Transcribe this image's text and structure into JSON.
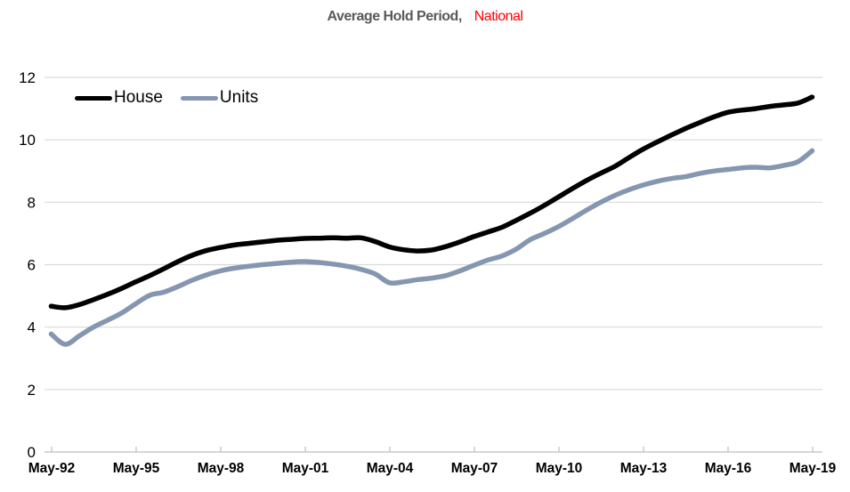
{
  "title": {
    "main": "Average Hold Period,",
    "highlight": "National"
  },
  "chart_data": {
    "type": "line",
    "title": "Average Hold Period, National",
    "xlabel": "",
    "ylabel": "",
    "ylim": [
      0,
      12
    ],
    "y_ticks": [
      0,
      2,
      4,
      6,
      8,
      10,
      12
    ],
    "grid": "horizontal",
    "legend_position": "top-left",
    "x_tick_labels": [
      "May-92",
      "May-95",
      "May-98",
      "May-01",
      "May-04",
      "May-07",
      "May-10",
      "May-13",
      "May-16",
      "May-19"
    ],
    "x_tick_years": [
      1992.417,
      1995.417,
      1998.417,
      2001.417,
      2004.417,
      2007.417,
      2010.417,
      2013.417,
      2016.417,
      2019.417
    ],
    "x_years": [
      1992.4,
      1992.9,
      1993.4,
      1993.9,
      1994.4,
      1994.9,
      1995.4,
      1995.9,
      1996.4,
      1996.9,
      1997.4,
      1997.9,
      1998.4,
      1998.9,
      1999.4,
      1999.9,
      2000.4,
      2000.9,
      2001.4,
      2001.9,
      2002.4,
      2002.9,
      2003.4,
      2003.9,
      2004.4,
      2004.9,
      2005.4,
      2005.9,
      2006.4,
      2006.9,
      2007.4,
      2007.9,
      2008.4,
      2008.9,
      2009.4,
      2009.9,
      2010.4,
      2010.9,
      2011.4,
      2011.9,
      2012.4,
      2012.9,
      2013.4,
      2013.9,
      2014.4,
      2014.9,
      2015.4,
      2015.9,
      2016.4,
      2016.9,
      2017.4,
      2017.9,
      2018.4,
      2018.9,
      2019.4
    ],
    "series": [
      {
        "name": "House",
        "color": "#000000",
        "values": [
          4.67,
          4.62,
          4.72,
          4.88,
          5.05,
          5.24,
          5.45,
          5.65,
          5.87,
          6.1,
          6.3,
          6.45,
          6.55,
          6.63,
          6.68,
          6.73,
          6.78,
          6.81,
          6.84,
          6.85,
          6.86,
          6.85,
          6.86,
          6.74,
          6.57,
          6.48,
          6.44,
          6.47,
          6.58,
          6.73,
          6.9,
          7.05,
          7.2,
          7.42,
          7.65,
          7.9,
          8.17,
          8.44,
          8.7,
          8.93,
          9.15,
          9.43,
          9.7,
          9.93,
          10.15,
          10.36,
          10.55,
          10.73,
          10.88,
          10.95,
          11.0,
          11.07,
          11.12,
          11.18,
          11.37
        ]
      },
      {
        "name": "Units",
        "color": "#8496B0",
        "values": [
          3.78,
          3.45,
          3.72,
          4.0,
          4.22,
          4.45,
          4.75,
          5.02,
          5.12,
          5.3,
          5.5,
          5.67,
          5.8,
          5.89,
          5.95,
          6.0,
          6.04,
          6.08,
          6.1,
          6.07,
          6.02,
          5.95,
          5.85,
          5.7,
          5.42,
          5.45,
          5.52,
          5.57,
          5.65,
          5.8,
          5.98,
          6.15,
          6.28,
          6.5,
          6.8,
          7.0,
          7.22,
          7.48,
          7.75,
          8.0,
          8.22,
          8.4,
          8.55,
          8.67,
          8.76,
          8.82,
          8.92,
          9.0,
          9.05,
          9.1,
          9.12,
          9.1,
          9.18,
          9.3,
          9.65
        ]
      }
    ],
    "colors": {
      "title_main": "#595959",
      "title_highlight": "#FF0000",
      "gridline": "#D9D9D9",
      "axis_line": "#BFBFBF",
      "labels": "#000000"
    }
  }
}
